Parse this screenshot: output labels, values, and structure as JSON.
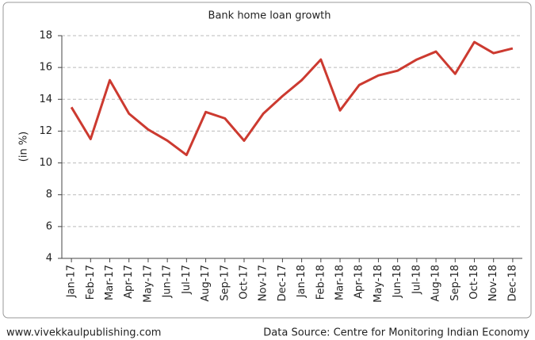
{
  "chart_data": {
    "type": "line",
    "title": "Bank home loan growth",
    "ylabel": "(in %)",
    "categories": [
      "Jan-17",
      "Feb-17",
      "Mar-17",
      "Apr-17",
      "May-17",
      "Jun-17",
      "Jul-17",
      "Aug-17",
      "Sep-17",
      "Oct-17",
      "Nov-17",
      "Dec-17",
      "Jan-18",
      "Feb-18",
      "Mar-18",
      "Apr-18",
      "May-18",
      "Jun-18",
      "Jul-18",
      "Aug-18",
      "Sep-18",
      "Oct-18",
      "Nov-18",
      "Dec-18"
    ],
    "series": [
      {
        "name": "Bank home loan growth",
        "color": "#cc3a30",
        "values": [
          13.5,
          11.5,
          15.2,
          13.1,
          12.1,
          11.4,
          10.5,
          13.2,
          12.8,
          11.4,
          13.1,
          14.2,
          15.2,
          16.5,
          13.3,
          14.9,
          15.5,
          15.8,
          16.5,
          17.0,
          15.6,
          17.6,
          16.9,
          17.2
        ]
      }
    ],
    "ylim": [
      4,
      18
    ],
    "yticks": [
      4,
      6,
      8,
      10,
      12,
      14,
      16,
      18
    ],
    "grid": true,
    "website": "www.vivekkaulpublishing.com",
    "source": "Data Source: Centre for Monitoring Indian Economy"
  }
}
